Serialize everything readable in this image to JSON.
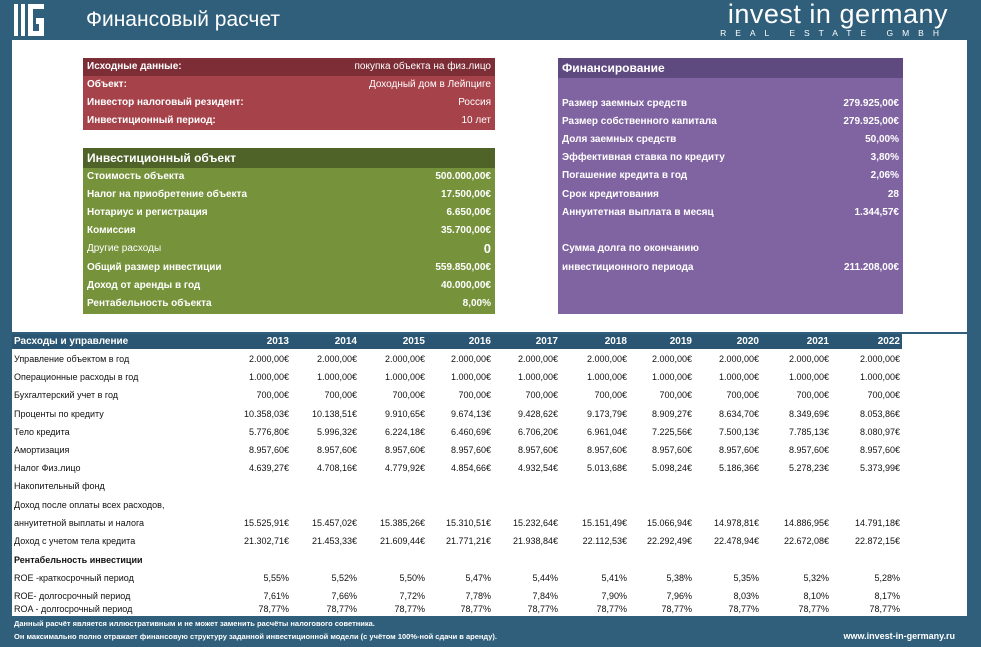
{
  "header": {
    "title": "Финансовый расчет",
    "brand_name": "invest in germany",
    "brand_sub": "REAL ESTATE GMBH"
  },
  "source": {
    "rows": [
      {
        "label": "Исходные данные:",
        "value": "покупка объекта на физ.лицо"
      },
      {
        "label": "Объект:",
        "value": "Доходный дом в Лейпциге"
      },
      {
        "label": "Инвестор налоговый резидент:",
        "value": "Россия"
      },
      {
        "label": "Инвестиционный период:",
        "value": "10 лет"
      }
    ]
  },
  "investment": {
    "title": "Инвестиционный объект",
    "rows": [
      {
        "label": "Стоимость объекта",
        "value": "500.000,00€"
      },
      {
        "label": "Налог на приобретение объекта",
        "value": "17.500,00€"
      },
      {
        "label": "Нотариус и регистрация",
        "value": "6.650,00€"
      },
      {
        "label": "Комиссия",
        "value": "35.700,00€"
      },
      {
        "label": "Другие расходы",
        "value": "0"
      },
      {
        "label": "Общий размер инвестиции",
        "value": "559.850,00€"
      },
      {
        "label": "Доход от аренды в год",
        "value": "40.000,00€"
      },
      {
        "label": "Рентабельность объекта",
        "value": "8,00%"
      }
    ]
  },
  "financing": {
    "title": "Финансирование",
    "rows": [
      {
        "label": "Размер заемных средств",
        "value": "279.925,00€"
      },
      {
        "label": "Размер собственного капитала",
        "value": "279.925,00€"
      },
      {
        "label": "Доля заемных средств",
        "value": "50,00%"
      },
      {
        "label": "Эффективная ставка по кредиту",
        "value": "3,80%"
      },
      {
        "label": "Погашение кредита в год",
        "value": "2,06%"
      },
      {
        "label": "Срок кредитования",
        "value": "28"
      },
      {
        "label": "Аннуитетная выплата в месяц",
        "value": "1.344,57€"
      }
    ],
    "debt_label_1": "Сумма долга по окончанию",
    "debt_label_2": "инвестиционного периода",
    "debt_value": "211.208,00€"
  },
  "table": {
    "header": "Расходы и управление",
    "years": [
      "2013",
      "2014",
      "2015",
      "2016",
      "2017",
      "2018",
      "2019",
      "2020",
      "2021",
      "2022"
    ],
    "rows": [
      {
        "label": "Управление объектом в год",
        "values": [
          "2.000,00€",
          "2.000,00€",
          "2.000,00€",
          "2.000,00€",
          "2.000,00€",
          "2.000,00€",
          "2.000,00€",
          "2.000,00€",
          "2.000,00€",
          "2.000,00€"
        ]
      },
      {
        "label": "Операционные расходы в год",
        "values": [
          "1.000,00€",
          "1.000,00€",
          "1.000,00€",
          "1.000,00€",
          "1.000,00€",
          "1.000,00€",
          "1.000,00€",
          "1.000,00€",
          "1.000,00€",
          "1.000,00€"
        ]
      },
      {
        "label": "Бухгалтерский учет в год",
        "values": [
          "700,00€",
          "700,00€",
          "700,00€",
          "700,00€",
          "700,00€",
          "700,00€",
          "700,00€",
          "700,00€",
          "700,00€",
          "700,00€"
        ]
      },
      {
        "label": "Проценты по кредиту",
        "values": [
          "10.358,03€",
          "10.138,51€",
          "9.910,65€",
          "9.674,13€",
          "9.428,62€",
          "9.173,79€",
          "8.909,27€",
          "8.634,70€",
          "8.349,69€",
          "8.053,86€"
        ]
      },
      {
        "label": "Тело кредита",
        "values": [
          "5.776,80€",
          "5.996,32€",
          "6.224,18€",
          "6.460,69€",
          "6.706,20€",
          "6.961,04€",
          "7.225,56€",
          "7.500,13€",
          "7.785,13€",
          "8.080,97€"
        ]
      },
      {
        "label": "Амортизация",
        "values": [
          "8.957,60€",
          "8.957,60€",
          "8.957,60€",
          "8.957,60€",
          "8.957,60€",
          "8.957,60€",
          "8.957,60€",
          "8.957,60€",
          "8.957,60€",
          "8.957,60€"
        ]
      },
      {
        "label": "Налог Физ.лицо",
        "values": [
          "4.639,27€",
          "4.708,16€",
          "4.779,92€",
          "4.854,66€",
          "4.932,54€",
          "5.013,68€",
          "5.098,24€",
          "5.186,36€",
          "5.278,23€",
          "5.373,99€"
        ]
      },
      {
        "label": "Накопительный фонд",
        "values": []
      },
      {
        "label": "Доход после оплаты всех расходов,",
        "values": []
      },
      {
        "label": "аннуитетной выплаты и налога",
        "values": [
          "15.525,91€",
          "15.457,02€",
          "15.385,26€",
          "15.310,51€",
          "15.232,64€",
          "15.151,49€",
          "15.066,94€",
          "14.978,81€",
          "14.886,95€",
          "14.791,18€"
        ]
      },
      {
        "label": "Доход с учетом тела кредита",
        "values": [
          "21.302,71€",
          "21.453,33€",
          "21.609,44€",
          "21.771,21€",
          "21.938,84€",
          "22.112,53€",
          "22.292,49€",
          "22.478,94€",
          "22.672,08€",
          "22.872,15€"
        ]
      },
      {
        "label": "Рентабельность инвестиции",
        "values": [],
        "bold": true
      },
      {
        "label": "ROE -краткосрочный период",
        "values": [
          "5,55%",
          "5,52%",
          "5,50%",
          "5,47%",
          "5,44%",
          "5,41%",
          "5,38%",
          "5,35%",
          "5,32%",
          "5,28%"
        ]
      },
      {
        "label": "ROE- долгосрочный период",
        "values": [
          "7,61%",
          "7,66%",
          "7,72%",
          "7,78%",
          "7,84%",
          "7,90%",
          "7,96%",
          "8,03%",
          "8,10%",
          "8,17%"
        ]
      },
      {
        "label": "ROA - долгосрочный период",
        "values": [
          "78,77%",
          "78,77%",
          "78,77%",
          "78,77%",
          "78,77%",
          "78,77%",
          "78,77%",
          "78,77%",
          "78,77%",
          "78,77%"
        ]
      }
    ]
  },
  "footer": {
    "note_1": "Данный расчёт является иллюстративным и не может заменить расчёты налогового советника.",
    "note_2": "Он максимально полно отражает финансовую структуру заданной инвестиционной модели (с учётом 100%-ной сдачи в аренду).",
    "url": "www.invest-in-germany.ru"
  }
}
